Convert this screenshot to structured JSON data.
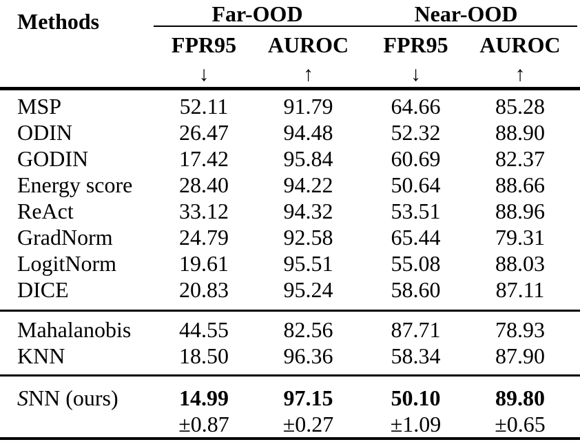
{
  "colors": {
    "text_color": "#000000",
    "background_color": "#ffffff",
    "rule_color": "#000000"
  },
  "table": {
    "methods_header": "Methods",
    "group_headers": [
      "Far-OOD",
      "Near-OOD"
    ],
    "metric_headers": [
      "FPR95",
      "AUROC",
      "FPR95",
      "AUROC"
    ],
    "metric_directions": [
      "↓",
      "↑",
      "↓",
      "↑"
    ],
    "sections": [
      {
        "rows": [
          {
            "method": "MSP",
            "values": [
              "52.11",
              "91.79",
              "64.66",
              "85.28"
            ]
          },
          {
            "method": "ODIN",
            "values": [
              "26.47",
              "94.48",
              "52.32",
              "88.90"
            ]
          },
          {
            "method": "GODIN",
            "values": [
              "17.42",
              "95.84",
              "60.69",
              "82.37"
            ]
          },
          {
            "method": "Energy score",
            "values": [
              "28.40",
              "94.22",
              "50.64",
              "88.66"
            ]
          },
          {
            "method": "ReAct",
            "values": [
              "33.12",
              "94.32",
              "53.51",
              "88.96"
            ]
          },
          {
            "method": "GradNorm",
            "values": [
              "24.79",
              "92.58",
              "65.44",
              "79.31"
            ]
          },
          {
            "method": "LogitNorm",
            "values": [
              "19.61",
              "95.51",
              "55.08",
              "88.03"
            ]
          },
          {
            "method": "DICE",
            "values": [
              "20.83",
              "95.24",
              "58.60",
              "87.11"
            ]
          }
        ]
      },
      {
        "rows": [
          {
            "method": "Mahalanobis",
            "values": [
              "44.55",
              "82.56",
              "87.71",
              "78.93"
            ]
          },
          {
            "method": "KNN",
            "values": [
              "18.50",
              "96.36",
              "58.34",
              "87.90"
            ]
          }
        ]
      }
    ],
    "ours": {
      "method_script_letter": "S",
      "method_rest": "NN (ours)",
      "values": [
        "14.99",
        "97.15",
        "50.10",
        "89.80"
      ],
      "std": [
        "±0.87",
        "±0.27",
        "±1.09",
        "±0.65"
      ]
    }
  }
}
